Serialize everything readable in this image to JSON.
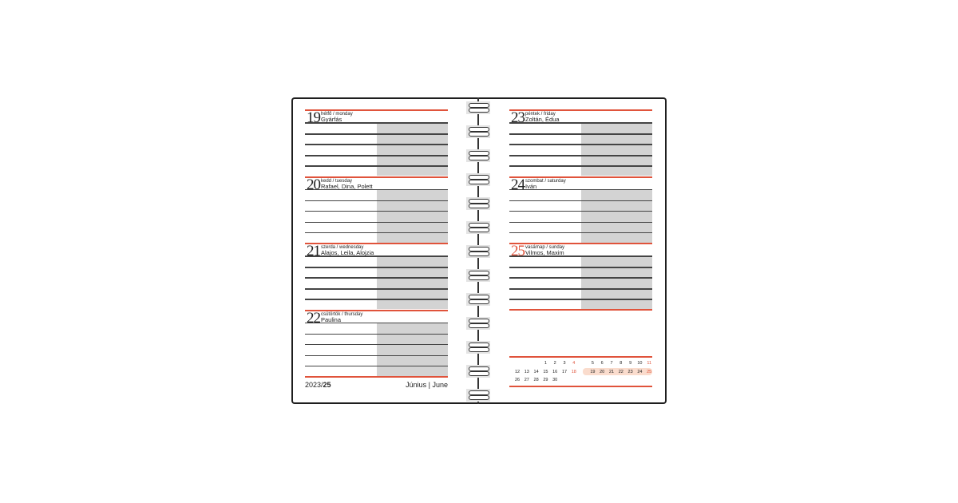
{
  "colors": {
    "accent": "#e0533b",
    "highlight": "#fadccd",
    "shade": "#d3d3d3"
  },
  "left_page": {
    "days": [
      {
        "num": "19",
        "dayname": "hétfő / monday",
        "names": "Gyárfás"
      },
      {
        "num": "20",
        "dayname": "kedd / tuesday",
        "names": "Rafael, Dina, Polett"
      },
      {
        "num": "21",
        "dayname": "szerda / wednesday",
        "names": "Alajos, Leila, Alojzia"
      },
      {
        "num": "22",
        "dayname": "csütörtök / thursday",
        "names": "Paulina"
      }
    ],
    "footer": {
      "year": "2023/",
      "week": "25",
      "month": "Június | June"
    }
  },
  "right_page": {
    "days": [
      {
        "num": "23",
        "dayname": "péntek / friday",
        "names": "Zoltán, Édua",
        "sunday": false
      },
      {
        "num": "24",
        "dayname": "szombat / saturday",
        "names": "Iván",
        "sunday": false
      },
      {
        "num": "25",
        "dayname": "vasárnap / sunday",
        "names": "Vilmos, Maxim",
        "sunday": true
      }
    ],
    "mini_calendar": {
      "rows": [
        [
          "",
          "",
          "",
          "1",
          "2",
          "3",
          "4",
          "",
          "5",
          "6",
          "7",
          "8",
          "9",
          "10",
          "11"
        ],
        [
          "12",
          "13",
          "14",
          "15",
          "16",
          "17",
          "18",
          "",
          "19",
          "20",
          "21",
          "22",
          "23",
          "24",
          "25"
        ],
        [
          "26",
          "27",
          "28",
          "29",
          "30",
          "",
          "",
          "",
          "",
          "",
          "",
          "",
          "",
          "",
          ""
        ]
      ],
      "weekend_days": [
        "4",
        "11",
        "18",
        "25"
      ],
      "highlighted_week": [
        "19",
        "20",
        "21",
        "22",
        "23",
        "24",
        "25"
      ]
    }
  }
}
